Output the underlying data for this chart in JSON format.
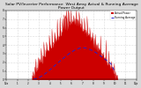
{
  "title": "Solar PV/Inverter Performance  West Array Actual & Running Average Power Output",
  "title_fontsize": 3.2,
  "bg_color": "#d8d8d8",
  "plot_bg_color": "#ffffff",
  "actual_color": "#cc0000",
  "avg_color": "#2222cc",
  "legend_actual": "Actual Power",
  "legend_avg": "Running Average",
  "ylim": [
    0,
    8
  ],
  "xlim": [
    0,
    288
  ],
  "grid_color": "#bbbbbb",
  "ytick_labels": [
    "0",
    "1",
    "2",
    "3",
    "4",
    "5",
    "6",
    "7",
    "8"
  ],
  "ytick_vals": [
    0,
    1,
    2,
    3,
    4,
    5,
    6,
    7,
    8
  ],
  "xtick_positions": [
    0,
    24,
    48,
    72,
    96,
    120,
    144,
    168,
    192,
    216,
    240,
    264,
    288
  ],
  "xtick_labels": [
    "12a",
    "1",
    "2",
    "3",
    "4",
    "5",
    "6",
    "7",
    "8",
    "9",
    "10",
    "11",
    "12p"
  ]
}
